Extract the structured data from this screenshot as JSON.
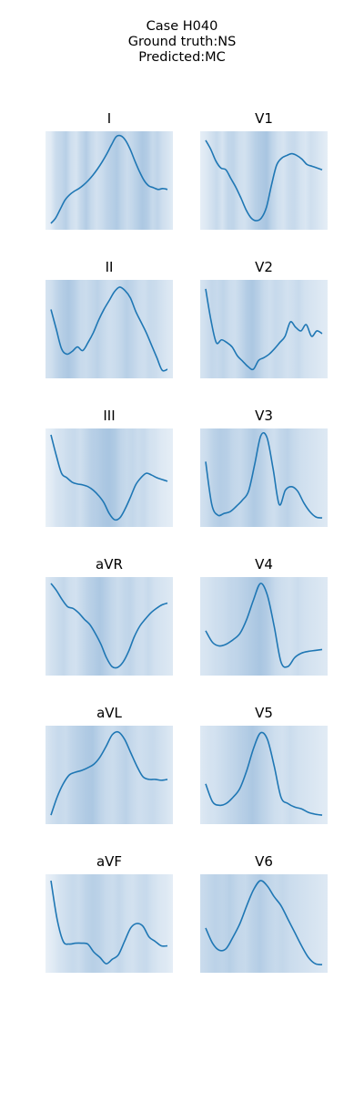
{
  "figure": {
    "case": "Case H040",
    "ground_truth": "Ground truth:NS",
    "predicted": "Predicted:MC"
  },
  "colors": {
    "line": "#1f77b4",
    "heat": "#4a86c0"
  },
  "chart_data": [
    {
      "type": "line",
      "title": "I",
      "background": "attention heatmap (Blues)",
      "values": [
        0.02,
        0.08,
        0.18,
        0.28,
        0.34,
        0.38,
        0.41,
        0.45,
        0.5,
        0.56,
        0.63,
        0.71,
        0.8,
        0.9,
        0.99,
        1.0,
        0.95,
        0.85,
        0.72,
        0.6,
        0.5,
        0.44,
        0.42,
        0.4,
        0.41,
        0.4
      ],
      "heat": [
        0.05,
        0.15,
        0.45,
        0.55,
        0.7,
        0.4,
        0.3,
        0.55,
        0.75,
        0.5,
        0.35,
        0.45,
        0.6,
        0.7,
        0.8,
        0.6,
        0.45,
        0.55,
        0.7,
        0.85,
        0.75,
        0.5,
        0.6,
        0.4,
        0.3,
        0.15
      ]
    },
    {
      "type": "line",
      "title": "V1",
      "background": "attention heatmap (Blues)",
      "values": [
        0.95,
        0.85,
        0.72,
        0.64,
        0.62,
        0.52,
        0.42,
        0.3,
        0.17,
        0.08,
        0.05,
        0.08,
        0.2,
        0.45,
        0.67,
        0.75,
        0.78,
        0.8,
        0.78,
        0.74,
        0.68,
        0.66,
        0.64,
        0.62
      ],
      "heat": [
        0.1,
        0.2,
        0.35,
        0.5,
        0.3,
        0.55,
        0.6,
        0.4,
        0.35,
        0.5,
        0.7,
        0.8,
        0.9,
        0.6,
        0.4,
        0.3,
        0.45,
        0.5,
        0.35,
        0.25,
        0.4,
        0.3,
        0.2,
        0.1
      ]
    },
    {
      "type": "line",
      "title": "II",
      "background": "attention heatmap (Blues)",
      "values": [
        0.72,
        0.5,
        0.28,
        0.22,
        0.25,
        0.3,
        0.26,
        0.35,
        0.46,
        0.6,
        0.72,
        0.82,
        0.92,
        0.97,
        0.93,
        0.85,
        0.7,
        0.58,
        0.46,
        0.32,
        0.18,
        0.04,
        0.05
      ],
      "heat": [
        0.3,
        0.4,
        0.6,
        0.75,
        0.85,
        0.7,
        0.5,
        0.45,
        0.55,
        0.65,
        0.5,
        0.4,
        0.45,
        0.55,
        0.7,
        0.6,
        0.45,
        0.4,
        0.5,
        0.45,
        0.35,
        0.25,
        0.2
      ]
    },
    {
      "type": "line",
      "title": "V2",
      "background": "attention heatmap (Blues)",
      "values": [
        0.95,
        0.6,
        0.35,
        0.38,
        0.35,
        0.3,
        0.2,
        0.14,
        0.08,
        0.05,
        0.15,
        0.18,
        0.22,
        0.28,
        0.35,
        0.42,
        0.58,
        0.52,
        0.48,
        0.55,
        0.42,
        0.48,
        0.45
      ],
      "heat": [
        0.3,
        0.4,
        0.55,
        0.5,
        0.6,
        0.45,
        0.4,
        0.55,
        0.75,
        0.85,
        0.7,
        0.5,
        0.4,
        0.5,
        0.45,
        0.35,
        0.4,
        0.5,
        0.35,
        0.3,
        0.25,
        0.2,
        0.15
      ]
    },
    {
      "type": "line",
      "title": "III",
      "background": "attention heatmap (Blues)",
      "values": [
        0.98,
        0.75,
        0.55,
        0.5,
        0.45,
        0.43,
        0.42,
        0.4,
        0.36,
        0.3,
        0.22,
        0.1,
        0.03,
        0.05,
        0.15,
        0.28,
        0.42,
        0.5,
        0.55,
        0.53,
        0.5,
        0.48,
        0.46
      ],
      "heat": [
        0.05,
        0.15,
        0.3,
        0.35,
        0.45,
        0.5,
        0.4,
        0.55,
        0.7,
        0.75,
        0.85,
        0.9,
        0.8,
        0.6,
        0.5,
        0.55,
        0.45,
        0.5,
        0.35,
        0.3,
        0.2,
        0.15,
        0.1
      ]
    },
    {
      "type": "line",
      "title": "V3",
      "background": "attention heatmap (Blues)",
      "values": [
        0.68,
        0.2,
        0.08,
        0.1,
        0.12,
        0.18,
        0.25,
        0.35,
        0.65,
        0.97,
        0.95,
        0.6,
        0.2,
        0.36,
        0.4,
        0.35,
        0.22,
        0.12,
        0.06,
        0.05
      ],
      "heat": [
        0.35,
        0.45,
        0.65,
        0.75,
        0.7,
        0.55,
        0.5,
        0.65,
        0.8,
        0.7,
        0.5,
        0.4,
        0.55,
        0.65,
        0.5,
        0.4,
        0.35,
        0.3,
        0.25,
        0.2
      ]
    },
    {
      "type": "line",
      "title": "aVR",
      "background": "attention heatmap (Blues)",
      "values": [
        0.98,
        0.9,
        0.8,
        0.72,
        0.7,
        0.65,
        0.58,
        0.52,
        0.42,
        0.3,
        0.15,
        0.05,
        0.04,
        0.1,
        0.22,
        0.38,
        0.5,
        0.58,
        0.65,
        0.7,
        0.74,
        0.76
      ],
      "heat": [
        0.2,
        0.35,
        0.45,
        0.55,
        0.4,
        0.35,
        0.5,
        0.65,
        0.75,
        0.85,
        0.7,
        0.55,
        0.45,
        0.55,
        0.6,
        0.45,
        0.4,
        0.5,
        0.35,
        0.3,
        0.25,
        0.2
      ]
    },
    {
      "type": "line",
      "title": "V4",
      "background": "attention heatmap (Blues)",
      "values": [
        0.45,
        0.32,
        0.28,
        0.3,
        0.35,
        0.42,
        0.58,
        0.8,
        0.98,
        0.85,
        0.5,
        0.1,
        0.05,
        0.15,
        0.2,
        0.22,
        0.23,
        0.24
      ],
      "heat": [
        0.25,
        0.3,
        0.4,
        0.45,
        0.55,
        0.6,
        0.7,
        0.8,
        0.9,
        0.75,
        0.5,
        0.4,
        0.35,
        0.45,
        0.35,
        0.3,
        0.25,
        0.2
      ]
    },
    {
      "type": "line",
      "title": "aVL",
      "background": "attention heatmap (Blues)",
      "values": [
        0.05,
        0.25,
        0.4,
        0.5,
        0.53,
        0.55,
        0.58,
        0.62,
        0.7,
        0.82,
        0.95,
        0.98,
        0.9,
        0.75,
        0.6,
        0.48,
        0.45,
        0.45,
        0.44,
        0.45
      ],
      "heat": [
        0.25,
        0.4,
        0.5,
        0.45,
        0.6,
        0.7,
        0.8,
        0.85,
        0.65,
        0.5,
        0.45,
        0.55,
        0.65,
        0.5,
        0.4,
        0.45,
        0.5,
        0.4,
        0.3,
        0.2
      ]
    },
    {
      "type": "line",
      "title": "V5",
      "background": "attention heatmap (Blues)",
      "values": [
        0.4,
        0.2,
        0.16,
        0.18,
        0.25,
        0.35,
        0.55,
        0.8,
        0.97,
        0.9,
        0.6,
        0.25,
        0.18,
        0.14,
        0.12,
        0.08,
        0.06,
        0.05
      ],
      "heat": [
        0.2,
        0.3,
        0.35,
        0.45,
        0.55,
        0.65,
        0.75,
        0.85,
        0.7,
        0.55,
        0.4,
        0.35,
        0.45,
        0.35,
        0.3,
        0.25,
        0.2,
        0.15
      ]
    },
    {
      "type": "line",
      "title": "aVF",
      "background": "attention heatmap (Blues)",
      "values": [
        0.98,
        0.55,
        0.3,
        0.27,
        0.28,
        0.28,
        0.27,
        0.18,
        0.12,
        0.05,
        0.1,
        0.15,
        0.3,
        0.45,
        0.5,
        0.47,
        0.35,
        0.3,
        0.25,
        0.25
      ],
      "heat": [
        0.05,
        0.15,
        0.3,
        0.4,
        0.5,
        0.45,
        0.6,
        0.7,
        0.65,
        0.5,
        0.45,
        0.55,
        0.4,
        0.35,
        0.45,
        0.5,
        0.35,
        0.25,
        0.2,
        0.1
      ]
    },
    {
      "type": "line",
      "title": "V6",
      "background": "attention heatmap (Blues)",
      "values": [
        0.45,
        0.28,
        0.2,
        0.22,
        0.35,
        0.5,
        0.7,
        0.88,
        0.98,
        0.92,
        0.8,
        0.7,
        0.55,
        0.4,
        0.25,
        0.12,
        0.05,
        0.04
      ],
      "heat": [
        0.45,
        0.55,
        0.65,
        0.6,
        0.7,
        0.55,
        0.5,
        0.65,
        0.75,
        0.6,
        0.5,
        0.55,
        0.45,
        0.4,
        0.35,
        0.3,
        0.25,
        0.2
      ]
    }
  ]
}
